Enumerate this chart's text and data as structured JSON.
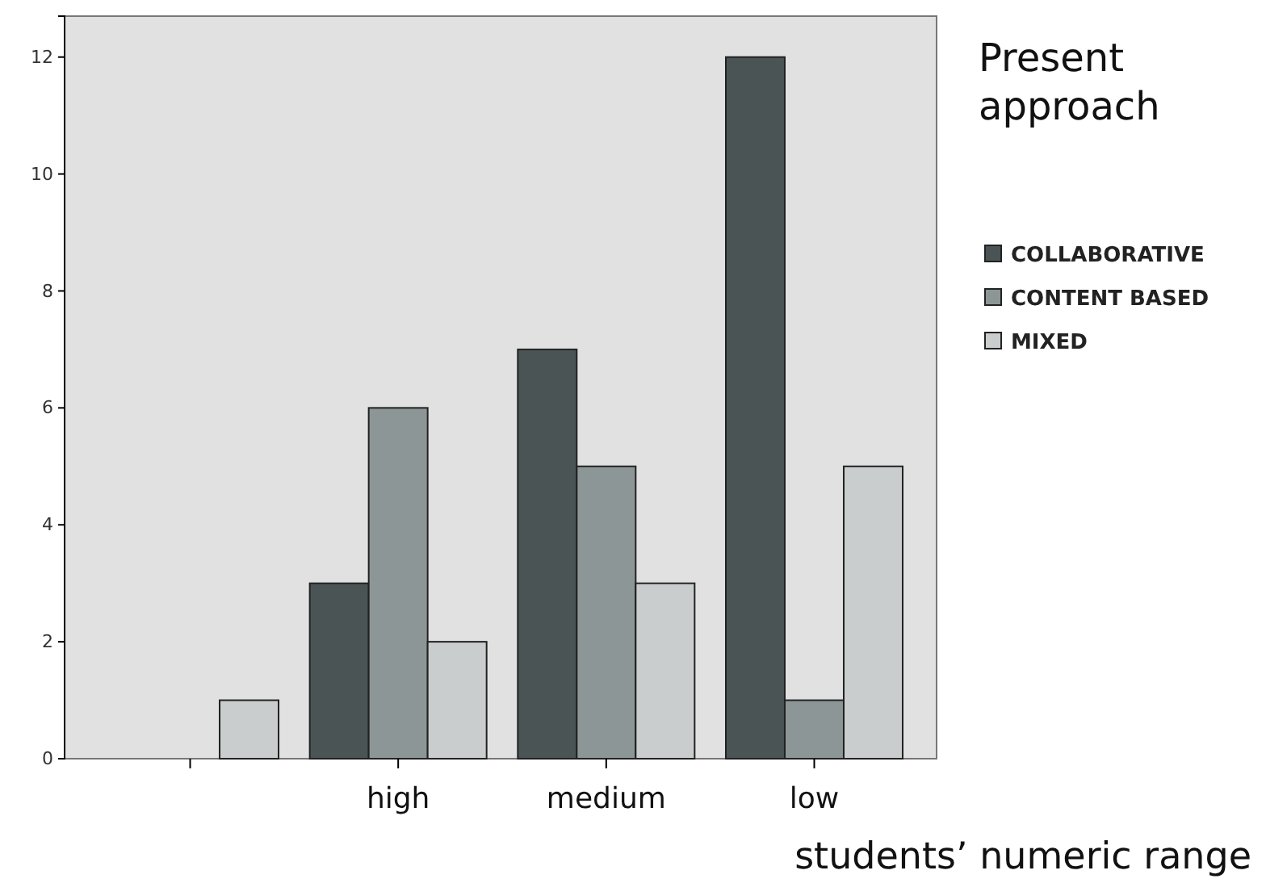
{
  "chart_data": {
    "type": "bar",
    "categories": [
      null,
      "high",
      "medium",
      "low"
    ],
    "series": [
      {
        "name": "COLLABORATIVE",
        "color": "#4b5455",
        "values": [
          null,
          3,
          7,
          12
        ]
      },
      {
        "name": "CONTENT BASED",
        "color": "#8d9696",
        "values": [
          null,
          6,
          5,
          1
        ]
      },
      {
        "name": "MIXED",
        "color": "#c9cdcd",
        "values": [
          1,
          2,
          3,
          5
        ]
      }
    ],
    "ylim": [
      0,
      12.7
    ],
    "yticks": [
      0,
      2,
      4,
      6,
      8,
      10,
      12
    ],
    "legend_title": "Present approach",
    "xlabel": "students’ numeric range",
    "legend": "right",
    "grid": false
  }
}
